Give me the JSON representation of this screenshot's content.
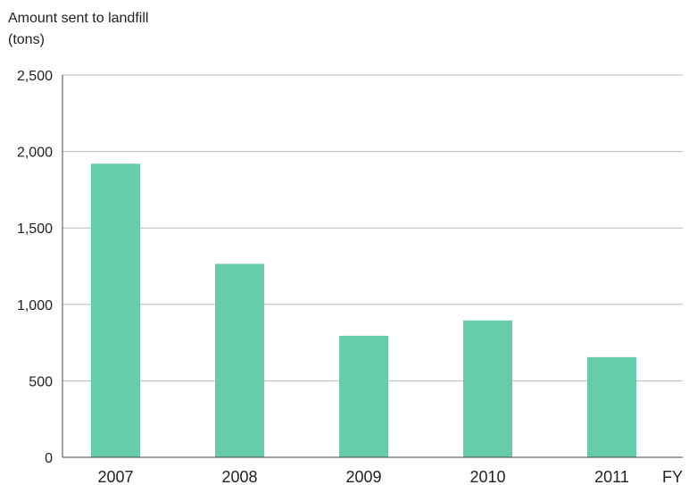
{
  "chart_data": {
    "type": "bar",
    "title": "",
    "ylabel_lines": [
      "Amount sent to landfill",
      "(tons)"
    ],
    "xlabel": "FY",
    "categories": [
      "2007",
      "2008",
      "2009",
      "2010",
      "2011"
    ],
    "values": [
      1920,
      1265,
      795,
      895,
      655
    ],
    "ylim": [
      0,
      2500
    ],
    "yticks": [
      0,
      500,
      1000,
      1500,
      2000,
      2500
    ],
    "ytick_labels": [
      "0",
      "500",
      "1,000",
      "1,500",
      "2,000",
      "2,500"
    ],
    "grid": true,
    "bar_color": "#66cdaa",
    "grid_color": "#bbbbbb",
    "axis_color": "#444444"
  }
}
